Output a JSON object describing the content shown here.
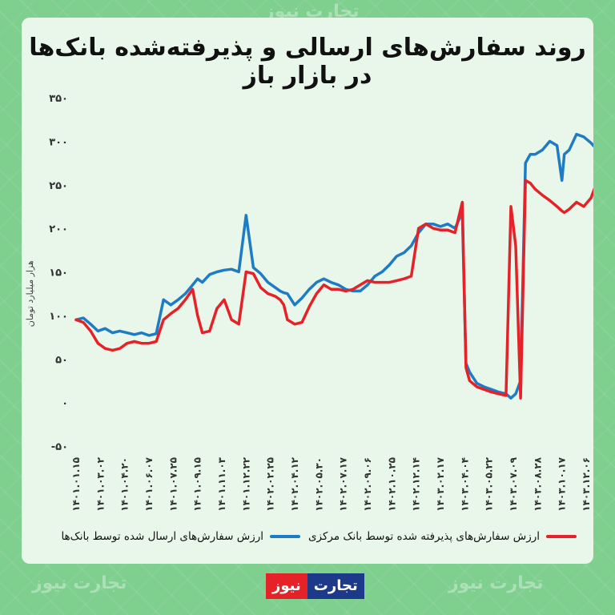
{
  "title": "روند سفارش‌های ارسالی و پذیرفته‌شده بانک‌ها در بازار باز",
  "legend": {
    "red": "ارزش سفارش‌های پذیرفته شده توسط بانک مرکزی",
    "blue": "ارزش سفارش‌های ارسال شده توسط بانک‌ها"
  },
  "brand": {
    "word1": "تجارت",
    "word2": "نیوز"
  },
  "watermark": "تجارت نیوز",
  "colors": {
    "red": "#e52228",
    "blue": "#1d7cc4"
  },
  "chart_data": {
    "type": "line",
    "title": "روند سفارش‌های ارسالی و پذیرفته‌شده بانک‌ها در بازار باز",
    "ylabel": "هزار میلیارد تومان",
    "ylim": [
      -50,
      350
    ],
    "yticks": [
      -50,
      0,
      50,
      100,
      150,
      200,
      250,
      300,
      350
    ],
    "ytick_labels": [
      "-۵۰",
      "۰",
      "۵۰",
      "۱۰۰",
      "۱۵۰",
      "۲۰۰",
      "۲۵۰",
      "۳۰۰",
      "۳۵۰"
    ],
    "x_labels": [
      "۱۴۰۱.۰۱.۱۵",
      "۱۴۰۱.۰۳.۰۲",
      "۱۴۰۱.۰۴.۲۰",
      "۱۴۰۱.۰۶.۰۷",
      "۱۴۰۱.۰۷.۲۵",
      "۱۴۰۱.۰۹.۱۵",
      "۱۴۰۱.۱۱.۰۳",
      "۱۴۰۱.۱۲.۲۲",
      "۱۴۰۲.۰۲.۲۵",
      "۱۴۰۲.۰۴.۱۲",
      "۱۴۰۲.۰۵.۳۰",
      "۱۴۰۲.۰۷.۱۷",
      "۱۴۰۲.۰۹.۰۶",
      "۱۴۰۲.۱۰.۲۵",
      "۱۴۰۲.۱۲.۱۴",
      "۱۴۰۳.۰۲.۱۷",
      "۱۴۰۳.۰۴.۰۴",
      "۱۴۰۳.۰۵.۲۲",
      "۱۴۰۳.۰۷.۰۹",
      "۱۴۰۳.۰۸.۲۸",
      "۱۴۰۳.۱۰.۱۷",
      "۱۴۰۳.۱۲.۰۶"
    ],
    "series": [
      {
        "name": "ارزش سفارش‌های ارسال شده توسط بانک‌ها",
        "color": "#1d7cc4",
        "x": [
          0,
          0.3,
          0.6,
          0.9,
          1.2,
          1.5,
          1.8,
          2.1,
          2.4,
          2.7,
          3.0,
          3.3,
          3.6,
          3.9,
          4.2,
          4.5,
          4.8,
          5.0,
          5.2,
          5.5,
          5.8,
          6.1,
          6.4,
          6.7,
          7.0,
          7.3,
          7.6,
          7.9,
          8.2,
          8.4,
          8.55,
          8.7,
          9.0,
          9.3,
          9.6,
          9.9,
          10.2,
          10.5,
          10.8,
          11.1,
          11.4,
          11.7,
          12.0,
          12.3,
          12.6,
          12.9,
          13.2,
          13.5,
          13.8,
          14.1,
          14.4,
          14.7,
          15.0,
          15.3,
          15.6,
          15.9,
          16.05,
          16.2,
          16.5,
          16.8,
          17.1,
          17.4,
          17.7,
          17.9,
          18.1,
          18.3,
          18.5,
          18.7,
          18.9,
          19.2,
          19.5,
          19.8,
          20.0,
          20.1,
          20.3,
          20.6,
          20.9,
          21.2,
          21.4
        ],
        "y": [
          95,
          97,
          90,
          82,
          85,
          80,
          82,
          80,
          78,
          80,
          77,
          79,
          118,
          112,
          118,
          125,
          135,
          142,
          138,
          147,
          150,
          152,
          153,
          150,
          215,
          155,
          148,
          138,
          132,
          128,
          126,
          125,
          112,
          120,
          130,
          138,
          142,
          138,
          135,
          130,
          128,
          128,
          135,
          145,
          150,
          158,
          168,
          172,
          180,
          195,
          205,
          205,
          202,
          205,
          200,
          218,
          45,
          35,
          22,
          18,
          15,
          12,
          10,
          5,
          10,
          25,
          275,
          285,
          285,
          290,
          300,
          295,
          255,
          285,
          290,
          308,
          305,
          298,
          292
        ]
      },
      {
        "name": "ارزش سفارش‌های پذیرفته شده توسط بانک مرکزی",
        "color": "#e52228",
        "x": [
          0,
          0.3,
          0.6,
          0.9,
          1.2,
          1.5,
          1.8,
          2.1,
          2.4,
          2.7,
          3.0,
          3.3,
          3.6,
          3.9,
          4.2,
          4.5,
          4.8,
          5.0,
          5.2,
          5.5,
          5.8,
          6.1,
          6.4,
          6.7,
          7.0,
          7.3,
          7.6,
          7.9,
          8.2,
          8.4,
          8.55,
          8.7,
          9.0,
          9.3,
          9.6,
          9.9,
          10.2,
          10.5,
          10.8,
          11.1,
          11.4,
          11.7,
          12.0,
          12.3,
          12.6,
          12.9,
          13.2,
          13.5,
          13.8,
          14.1,
          14.4,
          14.7,
          15.0,
          15.3,
          15.6,
          15.9,
          16.05,
          16.2,
          16.5,
          16.8,
          17.1,
          17.4,
          17.7,
          17.9,
          18.1,
          18.3,
          18.5,
          18.7,
          18.9,
          19.2,
          19.5,
          19.8,
          20.0,
          20.1,
          20.3,
          20.6,
          20.9,
          21.2,
          21.4
        ],
        "y": [
          95,
          92,
          82,
          68,
          62,
          60,
          62,
          68,
          70,
          68,
          68,
          70,
          95,
          102,
          108,
          118,
          130,
          100,
          80,
          82,
          108,
          118,
          95,
          90,
          150,
          148,
          132,
          125,
          122,
          118,
          112,
          95,
          90,
          92,
          110,
          125,
          135,
          130,
          130,
          128,
          130,
          135,
          140,
          138,
          138,
          138,
          140,
          142,
          145,
          200,
          205,
          200,
          198,
          198,
          195,
          230,
          40,
          25,
          18,
          15,
          12,
          10,
          8,
          225,
          180,
          5,
          255,
          252,
          245,
          238,
          232,
          225,
          220,
          218,
          222,
          230,
          225,
          235,
          250
        ]
      }
    ]
  }
}
